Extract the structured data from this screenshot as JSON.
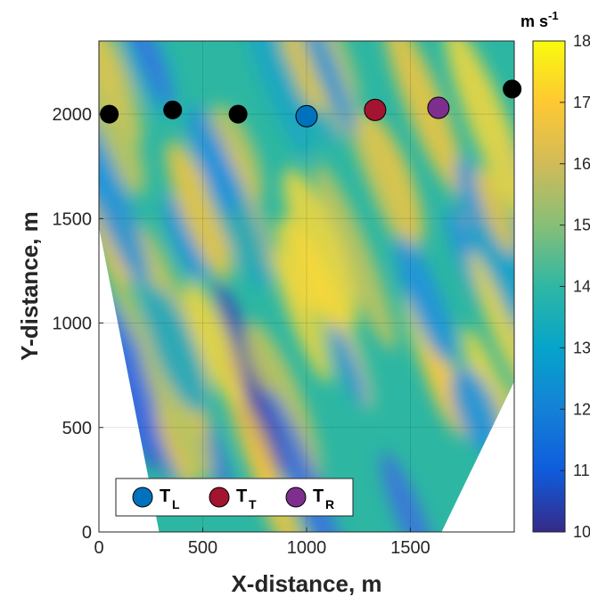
{
  "chart_data": {
    "type": "heatmap",
    "xlabel": "X-distance, m",
    "ylabel": "Y-distance, m",
    "xlim": [
      0,
      2000
    ],
    "ylim": [
      0,
      2350
    ],
    "xticks": [
      0,
      500,
      1000,
      1500
    ],
    "yticks": [
      0,
      500,
      1000,
      1500,
      2000
    ],
    "grid": true,
    "colorbar": {
      "label": "m s",
      "label_exponent": "-1",
      "range": [
        10,
        18
      ],
      "ticks": [
        10,
        11,
        12,
        13,
        14,
        15,
        16,
        17,
        18
      ],
      "colormap": "parula"
    },
    "field_description": "wind speed field with diagonal streaks",
    "data_region": [
      [
        0,
        2350
      ],
      [
        2000,
        2350
      ],
      [
        2000,
        720
      ],
      [
        1650,
        0
      ],
      [
        290,
        0
      ],
      [
        0,
        1460
      ]
    ],
    "turbines": [
      {
        "x": 50,
        "y": 2000,
        "color": "#000000"
      },
      {
        "x": 355,
        "y": 2020,
        "color": "#000000"
      },
      {
        "x": 670,
        "y": 2000,
        "color": "#000000"
      },
      {
        "x": 1000,
        "y": 1990,
        "color": "#0072BD"
      },
      {
        "x": 1330,
        "y": 2020,
        "color": "#A2142F"
      },
      {
        "x": 1635,
        "y": 2030,
        "color": "#7E2F8E"
      },
      {
        "x": 1990,
        "y": 2120,
        "color": "#000000"
      }
    ],
    "legend": {
      "placement": "bottom-left",
      "entries": [
        {
          "label": "T",
          "sub": "L",
          "color": "#0072BD"
        },
        {
          "label": "T",
          "sub": "T",
          "color": "#A2142F"
        },
        {
          "label": "T",
          "sub": "R",
          "color": "#7E2F8E"
        }
      ]
    }
  }
}
